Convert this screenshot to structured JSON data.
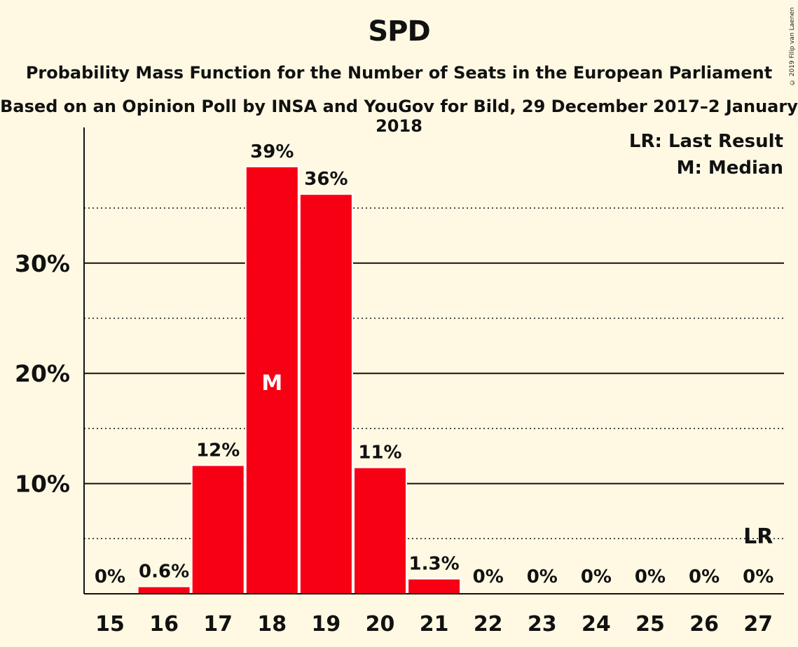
{
  "title": "SPD",
  "subtitle": "Probability Mass Function for the Number of Seats in the European Parliament",
  "subtitle2": "Based on an Opinion Poll by INSA and YouGov for Bild, 29 December 2017–2 January 2018",
  "copyright": "© 2019 Filip van Laenen",
  "colors": {
    "bar": "#F70014",
    "background": "#FFF9E3",
    "text": "#111111"
  },
  "chart_data": {
    "type": "bar",
    "categories": [
      "15",
      "16",
      "17",
      "18",
      "19",
      "20",
      "21",
      "22",
      "23",
      "24",
      "25",
      "26",
      "27"
    ],
    "values": [
      0,
      0.6,
      11.6,
      38.7,
      36.2,
      11.4,
      1.3,
      0,
      0,
      0,
      0,
      0,
      0
    ],
    "data_labels": [
      "0%",
      "0.6%",
      "12%",
      "39%",
      "36%",
      "11%",
      "1.3%",
      "0%",
      "0%",
      "0%",
      "0%",
      "0%",
      "0%"
    ],
    "ylim": [
      0,
      42
    ],
    "yticks": [
      10,
      20,
      30
    ],
    "ytick_labels": [
      "10%",
      "20%",
      "30%"
    ],
    "minor_gridlines": [
      5,
      15,
      25,
      35
    ],
    "median": {
      "category": "18",
      "label": "M"
    },
    "last_result": {
      "category": "27",
      "label": "LR"
    },
    "legend": [
      "LR: Last Result",
      "M: Median"
    ],
    "legend_position": "top-right",
    "grid": true
  }
}
